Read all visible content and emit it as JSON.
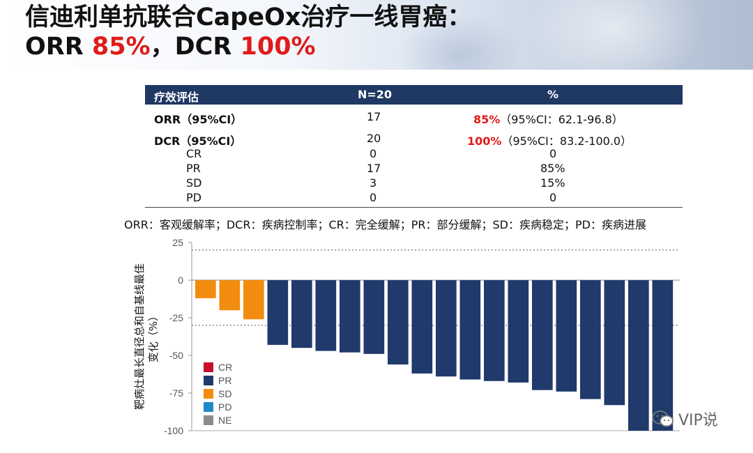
{
  "header": {
    "title_line1": "信迪利单抗联合CapeOx治疗一线胃癌：",
    "title_line2_a": "ORR ",
    "title_line2_b": "85%",
    "title_line2_c": "，DCR ",
    "title_line2_d": "100%"
  },
  "table": {
    "headers": [
      "疗效评估",
      "N=20",
      "%"
    ],
    "rows": [
      {
        "label": "ORR（95%CI）",
        "n": "17",
        "pct_red": "85%",
        "pct_rest": "（95%CI：62.1-96.8）",
        "bold": true
      },
      {
        "label": "DCR（95%CI）",
        "n": "20",
        "pct_red": "100%",
        "pct_rest": "（95%CI：83.2-100.0）",
        "bold": true
      },
      {
        "label": "CR",
        "n": "0",
        "pct": "0"
      },
      {
        "label": "PR",
        "n": "17",
        "pct": "85%"
      },
      {
        "label": "SD",
        "n": "3",
        "pct": "15%"
      },
      {
        "label": "PD",
        "n": "0",
        "pct": "0"
      }
    ]
  },
  "abbreviations": "ORR：客观缓解率；DCR：疾病控制率；CR：完全缓解；PR：部分缓解；SD：疾病稳定；PD：疾病进展",
  "chart_data": {
    "type": "bar",
    "ylabel_line1": "靶病灶最长直径总和自基线最佳",
    "ylabel_line2": "变化（%）",
    "ylim": [
      -100,
      25
    ],
    "yticks": [
      25,
      0,
      -25,
      -50,
      -75,
      -100
    ],
    "reference_lines": [
      20,
      -30
    ],
    "values": [
      -12,
      -20,
      -26,
      -43,
      -45,
      -47,
      -48,
      -49,
      -56,
      -62,
      -64,
      -66,
      -67,
      -68,
      -73,
      -74,
      -79,
      -83,
      -100,
      -100
    ],
    "categories_per_bar": [
      "SD",
      "SD",
      "SD",
      "PR",
      "PR",
      "PR",
      "PR",
      "PR",
      "PR",
      "PR",
      "PR",
      "PR",
      "PR",
      "PR",
      "PR",
      "PR",
      "PR",
      "PR",
      "PR",
      "PR"
    ],
    "legend": [
      {
        "label": "CR",
        "color": "#c8102e"
      },
      {
        "label": "PR",
        "color": "#1f3a6b"
      },
      {
        "label": "SD",
        "color": "#f28c0f"
      },
      {
        "label": "PD",
        "color": "#1e88c8"
      },
      {
        "label": "NE",
        "color": "#8c8c8c"
      }
    ],
    "legend_position": "bottom-left"
  },
  "watermark": "VIP说"
}
